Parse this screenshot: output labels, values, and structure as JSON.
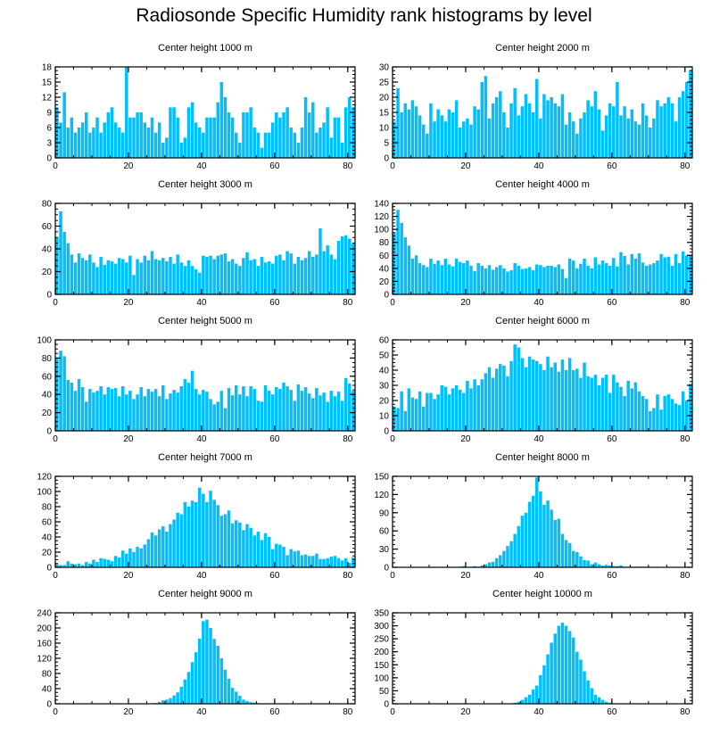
{
  "title": "Radiosonde Specific Humidity rank histograms by level",
  "colors": {
    "bar": "#00BFFF",
    "bar_edge": "#ffffff",
    "axis": "#000000"
  },
  "chart_data": [
    {
      "type": "bar",
      "title": "Center height 1000 m",
      "xlabel": "",
      "ylabel": "",
      "xlim": [
        0,
        82
      ],
      "ylim": [
        0,
        18
      ],
      "xticks": [
        0,
        20,
        40,
        60,
        80
      ],
      "yticks": [
        0,
        3,
        6,
        9,
        12,
        15,
        18
      ],
      "values": [
        10,
        7,
        13,
        6,
        8,
        5,
        6,
        7,
        9,
        5,
        6,
        8,
        5,
        7,
        9,
        10,
        7,
        6,
        5,
        18,
        8,
        8,
        9,
        9,
        7,
        6,
        8,
        5,
        7,
        3,
        4,
        10,
        10,
        8,
        3,
        4,
        10,
        11,
        7,
        6,
        5,
        8,
        8,
        8,
        11,
        15,
        12,
        9,
        8,
        5,
        3,
        9,
        9,
        10,
        6,
        5,
        2,
        5,
        5,
        7,
        9,
        8,
        9,
        10,
        6,
        5,
        3,
        6,
        12,
        9,
        11,
        5,
        6,
        7,
        10,
        4,
        8,
        8,
        3,
        10,
        12,
        10
      ]
    },
    {
      "type": "bar",
      "title": "Center height 2000 m",
      "xlabel": "",
      "ylabel": "",
      "xlim": [
        0,
        82
      ],
      "ylim": [
        0,
        30
      ],
      "xticks": [
        0,
        20,
        40,
        60,
        80
      ],
      "yticks": [
        0,
        5,
        10,
        15,
        20,
        25,
        30
      ],
      "values": [
        12,
        23,
        15,
        18,
        16,
        19,
        17,
        14,
        11,
        8,
        18,
        12,
        16,
        14,
        12,
        16,
        15,
        19,
        10,
        12,
        13,
        11,
        17,
        16,
        25,
        27,
        13,
        18,
        20,
        22,
        15,
        10,
        18,
        23,
        14,
        17,
        21,
        18,
        15,
        26,
        13,
        21,
        19,
        20,
        18,
        17,
        21,
        11,
        15,
        12,
        8,
        13,
        15,
        19,
        17,
        22,
        16,
        9,
        14,
        18,
        17,
        25,
        14,
        17,
        13,
        16,
        12,
        11,
        18,
        14,
        10,
        13,
        19,
        17,
        18,
        20,
        18,
        12,
        20,
        22,
        25,
        29
      ]
    },
    {
      "type": "bar",
      "title": "Center height 3000 m",
      "xlabel": "",
      "ylabel": "",
      "xlim": [
        0,
        82
      ],
      "ylim": [
        0,
        80
      ],
      "xticks": [
        0,
        20,
        40,
        60,
        80
      ],
      "yticks": [
        0,
        20,
        40,
        60,
        80
      ],
      "values": [
        50,
        73,
        55,
        45,
        35,
        28,
        36,
        32,
        30,
        35,
        28,
        24,
        33,
        26,
        30,
        29,
        27,
        32,
        31,
        28,
        34,
        17,
        31,
        28,
        34,
        30,
        38,
        31,
        30,
        32,
        29,
        33,
        27,
        35,
        28,
        25,
        30,
        25,
        22,
        19,
        34,
        33,
        34,
        31,
        34,
        35,
        36,
        29,
        31,
        27,
        25,
        32,
        37,
        30,
        31,
        25,
        33,
        28,
        29,
        27,
        34,
        35,
        30,
        38,
        36,
        27,
        33,
        30,
        32,
        38,
        33,
        35,
        58,
        38,
        43,
        35,
        31,
        47,
        51,
        52,
        49,
        45
      ]
    },
    {
      "type": "bar",
      "title": "Center height 4000 m",
      "xlabel": "",
      "ylabel": "",
      "xlim": [
        0,
        82
      ],
      "ylim": [
        0,
        140
      ],
      "xticks": [
        0,
        20,
        40,
        60,
        80
      ],
      "yticks": [
        0,
        20,
        40,
        60,
        80,
        100,
        120,
        140
      ],
      "values": [
        95,
        130,
        110,
        88,
        75,
        55,
        60,
        48,
        45,
        42,
        55,
        47,
        52,
        45,
        55,
        46,
        43,
        55,
        50,
        48,
        52,
        44,
        36,
        48,
        44,
        40,
        45,
        38,
        42,
        45,
        40,
        35,
        37,
        48,
        44,
        39,
        40,
        42,
        37,
        46,
        45,
        42,
        44,
        44,
        42,
        46,
        39,
        25,
        55,
        52,
        40,
        47,
        55,
        44,
        40,
        57,
        46,
        52,
        48,
        44,
        56,
        43,
        65,
        59,
        46,
        62,
        55,
        63,
        49,
        44,
        46,
        48,
        52,
        62,
        57,
        58,
        44,
        62,
        48,
        66,
        60,
        60
      ]
    },
    {
      "type": "bar",
      "title": "Center height 5000 m",
      "xlabel": "",
      "ylabel": "",
      "xlim": [
        0,
        82
      ],
      "ylim": [
        0,
        100
      ],
      "xticks": [
        0,
        20,
        40,
        60,
        80
      ],
      "yticks": [
        0,
        20,
        40,
        60,
        80,
        100
      ],
      "values": [
        80,
        88,
        82,
        56,
        53,
        44,
        57,
        48,
        32,
        46,
        42,
        44,
        49,
        40,
        48,
        46,
        47,
        38,
        49,
        40,
        44,
        35,
        40,
        48,
        38,
        46,
        43,
        46,
        38,
        50,
        35,
        41,
        45,
        42,
        49,
        57,
        53,
        66,
        46,
        40,
        45,
        43,
        35,
        29,
        32,
        44,
        25,
        47,
        39,
        50,
        40,
        49,
        38,
        49,
        46,
        33,
        32,
        50,
        44,
        40,
        48,
        46,
        53,
        49,
        45,
        33,
        51,
        44,
        48,
        41,
        36,
        47,
        39,
        42,
        32,
        44,
        38,
        43,
        33,
        58,
        52,
        44
      ]
    },
    {
      "type": "bar",
      "title": "Center height 6000 m",
      "xlabel": "",
      "ylabel": "",
      "xlim": [
        0,
        82
      ],
      "ylim": [
        0,
        60
      ],
      "xticks": [
        0,
        20,
        40,
        60,
        80
      ],
      "yticks": [
        0,
        10,
        20,
        30,
        40,
        50,
        60
      ],
      "values": [
        16,
        15,
        26,
        13,
        28,
        22,
        21,
        26,
        16,
        25,
        25,
        21,
        24,
        30,
        29,
        24,
        28,
        30,
        27,
        25,
        33,
        28,
        34,
        30,
        34,
        38,
        42,
        35,
        41,
        44,
        43,
        36,
        46,
        57,
        55,
        48,
        42,
        49,
        47,
        46,
        44,
        40,
        49,
        42,
        45,
        39,
        47,
        40,
        48,
        40,
        41,
        35,
        45,
        36,
        35,
        37,
        30,
        35,
        37,
        25,
        37,
        32,
        29,
        23,
        33,
        28,
        32,
        26,
        23,
        21,
        13,
        15,
        24,
        14,
        23,
        24,
        21,
        18,
        17,
        26,
        20,
        31
      ]
    },
    {
      "type": "bar",
      "title": "Center height 7000 m",
      "xlabel": "",
      "ylabel": "",
      "xlim": [
        0,
        82
      ],
      "ylim": [
        0,
        120
      ],
      "xticks": [
        0,
        20,
        40,
        60,
        80
      ],
      "yticks": [
        0,
        20,
        40,
        60,
        80,
        100,
        120
      ],
      "values": [
        4,
        3,
        3,
        8,
        5,
        4,
        5,
        3,
        7,
        5,
        10,
        7,
        12,
        11,
        10,
        8,
        15,
        13,
        22,
        18,
        25,
        20,
        27,
        25,
        30,
        37,
        46,
        42,
        50,
        54,
        47,
        57,
        63,
        72,
        70,
        86,
        80,
        88,
        86,
        105,
        97,
        86,
        101,
        89,
        82,
        68,
        70,
        75,
        58,
        62,
        59,
        49,
        57,
        52,
        42,
        47,
        36,
        45,
        40,
        24,
        31,
        30,
        27,
        16,
        24,
        21,
        22,
        16,
        17,
        15,
        15,
        18,
        11,
        11,
        12,
        14,
        15,
        12,
        9,
        12,
        6,
        13
      ]
    },
    {
      "type": "bar",
      "title": "Center height 8000 m",
      "xlabel": "",
      "ylabel": "",
      "xlim": [
        0,
        82
      ],
      "ylim": [
        0,
        150
      ],
      "xticks": [
        0,
        20,
        40,
        60,
        80
      ],
      "yticks": [
        0,
        30,
        60,
        90,
        120,
        150
      ],
      "values": [
        0,
        0,
        0,
        0,
        0,
        0,
        0,
        0,
        0,
        0,
        0,
        0,
        0,
        0,
        0,
        1,
        0,
        0,
        1,
        2,
        1,
        1,
        2,
        1,
        3,
        5,
        8,
        9,
        15,
        20,
        27,
        35,
        43,
        55,
        68,
        85,
        90,
        108,
        118,
        148,
        125,
        103,
        110,
        95,
        78,
        80,
        55,
        45,
        40,
        27,
        25,
        18,
        12,
        11,
        5,
        8,
        5,
        3,
        4,
        3,
        2,
        2,
        3,
        1,
        1,
        1,
        1,
        1,
        1,
        1,
        1,
        0,
        1,
        0,
        0,
        0,
        0,
        0,
        0,
        0,
        0,
        0
      ]
    },
    {
      "type": "bar",
      "title": "Center height 9000 m",
      "xlabel": "",
      "ylabel": "",
      "xlim": [
        0,
        82
      ],
      "ylim": [
        0,
        240
      ],
      "xticks": [
        0,
        20,
        40,
        60,
        80
      ],
      "yticks": [
        0,
        40,
        80,
        120,
        160,
        200,
        240
      ],
      "values": [
        0,
        0,
        0,
        0,
        0,
        0,
        0,
        0,
        0,
        0,
        0,
        0,
        0,
        0,
        0,
        0,
        0,
        0,
        0,
        0,
        0,
        0,
        0,
        0,
        0,
        0,
        1,
        2,
        5,
        9,
        11,
        15,
        22,
        30,
        45,
        64,
        84,
        110,
        136,
        172,
        218,
        222,
        200,
        171,
        153,
        120,
        90,
        66,
        42,
        32,
        21,
        11,
        7,
        4,
        3,
        2,
        1,
        1,
        0,
        0,
        0,
        0,
        0,
        0,
        0,
        0,
        0,
        0,
        0,
        0,
        0,
        0,
        0,
        0,
        0,
        0,
        0,
        0,
        0,
        0,
        0,
        0
      ]
    },
    {
      "type": "bar",
      "title": "Center height 10000 m",
      "xlabel": "",
      "ylabel": "",
      "xlim": [
        0,
        82
      ],
      "ylim": [
        0,
        350
      ],
      "xticks": [
        0,
        20,
        40,
        60,
        80
      ],
      "yticks": [
        0,
        50,
        100,
        150,
        200,
        250,
        300,
        350
      ],
      "values": [
        0,
        0,
        0,
        0,
        0,
        0,
        0,
        0,
        0,
        0,
        0,
        0,
        0,
        0,
        0,
        0,
        0,
        0,
        0,
        0,
        0,
        0,
        0,
        0,
        0,
        0,
        0,
        0,
        0,
        0,
        0,
        1,
        2,
        4,
        8,
        15,
        25,
        35,
        55,
        70,
        110,
        148,
        190,
        235,
        270,
        300,
        312,
        300,
        280,
        255,
        200,
        170,
        125,
        90,
        60,
        35,
        25,
        15,
        8,
        4,
        2,
        1,
        0,
        0,
        0,
        0,
        0,
        0,
        0,
        0,
        0,
        0,
        0,
        0,
        0,
        0,
        0,
        0,
        0,
        0,
        0,
        0
      ]
    }
  ]
}
